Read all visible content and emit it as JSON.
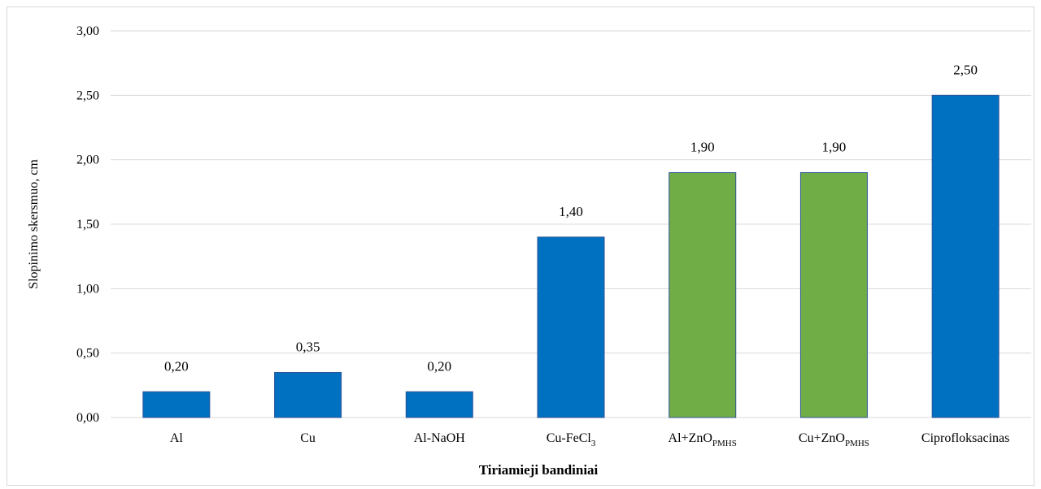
{
  "chart_data": {
    "type": "bar",
    "categories": [
      {
        "main": "Al",
        "sub": ""
      },
      {
        "main": "Cu",
        "sub": ""
      },
      {
        "main": "Al-NaOH",
        "sub": ""
      },
      {
        "main": "Cu-FeCl",
        "sub": "3"
      },
      {
        "main": "Al+ZnO",
        "sub": "PMHS"
      },
      {
        "main": "Cu+ZnO",
        "sub": "PMHS"
      },
      {
        "main": "Ciprofloksacinas",
        "sub": ""
      }
    ],
    "values": [
      0.2,
      0.35,
      0.2,
      1.4,
      1.9,
      1.9,
      2.5
    ],
    "value_labels": [
      "0,20",
      "0,35",
      "0,20",
      "1,40",
      "1,90",
      "1,90",
      "2,50"
    ],
    "bar_colors": [
      "#0070c0",
      "#0070c0",
      "#0070c0",
      "#0070c0",
      "#70ad47",
      "#70ad47",
      "#0070c0"
    ],
    "ylim": [
      0,
      3
    ],
    "yticks": [
      0,
      0.5,
      1.0,
      1.5,
      2.0,
      2.5,
      3.0
    ],
    "ytick_labels": [
      "0,00",
      "0,50",
      "1,00",
      "1,50",
      "2,00",
      "2,50",
      "3,00"
    ],
    "ylabel": "Slopinimo skersmuo, cm",
    "xlabel": "Tiriamieji bandiniai",
    "grid": true,
    "gridline_color": "#d9d9d9",
    "bar_edge_color": "#2f5597"
  }
}
